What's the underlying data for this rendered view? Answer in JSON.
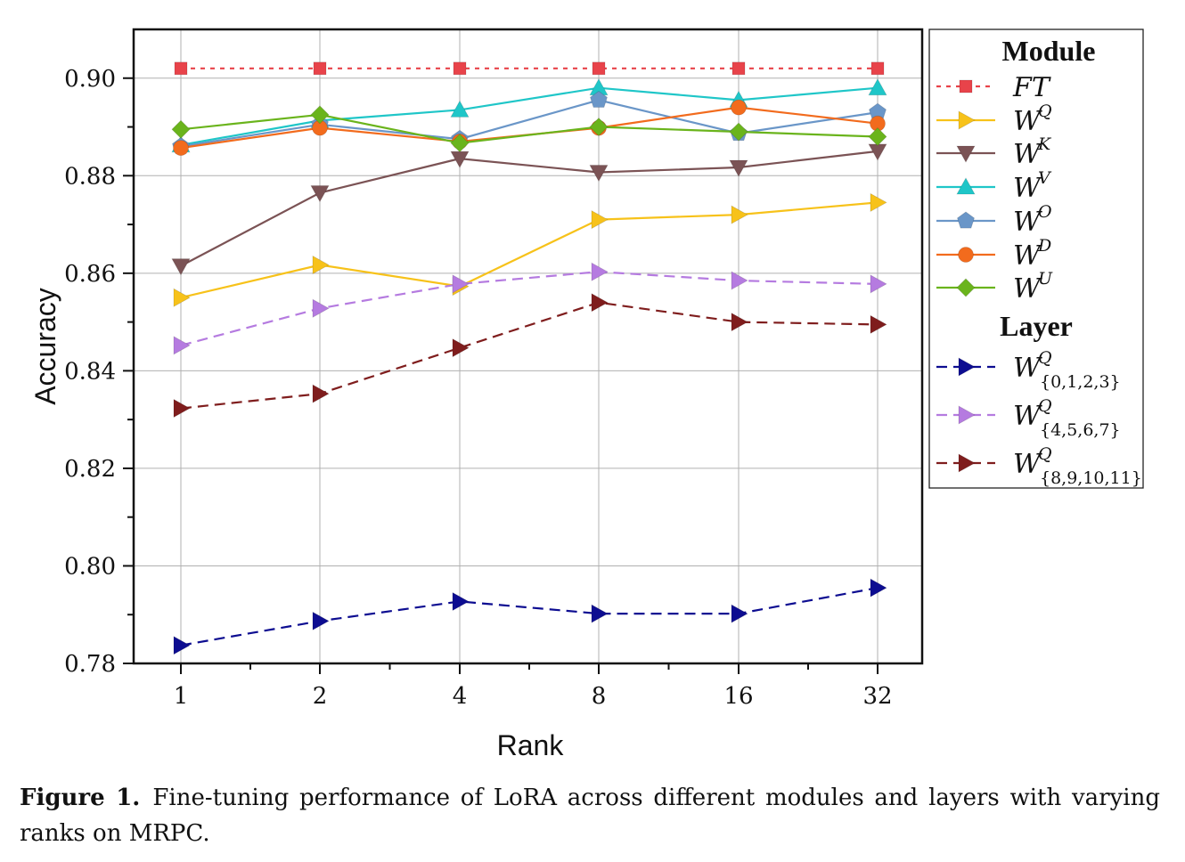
{
  "chart_data": {
    "type": "line",
    "xlabel": "Rank",
    "ylabel": "Accuracy",
    "categories": [
      "1",
      "2",
      "4",
      "8",
      "16",
      "32"
    ],
    "ylim": [
      0.78,
      0.91
    ],
    "yticks": [
      0.78,
      0.8,
      0.82,
      0.84,
      0.86,
      0.88,
      0.9
    ],
    "ytick_labels": [
      "0.78",
      "0.80",
      "0.82",
      "0.84",
      "0.86",
      "0.88",
      "0.90"
    ],
    "grid": true,
    "legend_position": "right, outside plot",
    "legend_sections": [
      "Module",
      "Layer"
    ],
    "series": [
      {
        "id": "ft",
        "name": "FT",
        "base": "FT",
        "sup": "",
        "sub": "",
        "section": "Module",
        "color": "#e8434a",
        "marker": "square",
        "dash": "dotted",
        "values": [
          0.902,
          0.902,
          0.902,
          0.902,
          0.902,
          0.902
        ]
      },
      {
        "id": "wq",
        "name": "W^Q",
        "base": "W",
        "sup": "Q",
        "sub": "",
        "section": "Module",
        "color": "#f7c21a",
        "marker": "triangle-right",
        "dash": "solid",
        "values": [
          0.855,
          0.8617,
          0.8573,
          0.871,
          0.872,
          0.8745
        ]
      },
      {
        "id": "wk",
        "name": "W^K",
        "base": "W",
        "sup": "K",
        "sub": "",
        "section": "Module",
        "color": "#7b5355",
        "marker": "triangle-down",
        "dash": "solid",
        "values": [
          0.8615,
          0.8765,
          0.8835,
          0.8807,
          0.8817,
          0.885
        ]
      },
      {
        "id": "wv",
        "name": "W^V",
        "base": "W",
        "sup": "V",
        "sub": "",
        "section": "Module",
        "color": "#1fc6c8",
        "marker": "triangle-up",
        "dash": "solid",
        "values": [
          0.8863,
          0.8913,
          0.8935,
          0.898,
          0.8955,
          0.898
        ]
      },
      {
        "id": "wo",
        "name": "W^O",
        "base": "W",
        "sup": "O",
        "sub": "",
        "section": "Module",
        "color": "#6a96c8",
        "marker": "pentagon",
        "dash": "solid",
        "values": [
          0.886,
          0.8905,
          0.8875,
          0.8955,
          0.8887,
          0.893
        ]
      },
      {
        "id": "wd",
        "name": "W^D",
        "base": "W",
        "sup": "D",
        "sub": "",
        "section": "Module",
        "color": "#f26b1d",
        "marker": "circle",
        "dash": "solid",
        "values": [
          0.8857,
          0.8898,
          0.887,
          0.8898,
          0.894,
          0.8907
        ]
      },
      {
        "id": "wu",
        "name": "W^U",
        "base": "W",
        "sup": "U",
        "sub": "",
        "section": "Module",
        "color": "#6ab41c",
        "marker": "diamond",
        "dash": "solid",
        "values": [
          0.8895,
          0.8925,
          0.8867,
          0.89,
          0.889,
          0.888
        ]
      },
      {
        "id": "l0",
        "name": "W^Q_{0,1,2,3}",
        "base": "W",
        "sup": "Q",
        "sub": "{0,1,2,3}",
        "section": "Layer",
        "color": "#0d0d91",
        "marker": "triangle-right",
        "dash": "dashed",
        "values": [
          0.7837,
          0.7887,
          0.7927,
          0.7902,
          0.7902,
          0.7955
        ]
      },
      {
        "id": "l4",
        "name": "W^Q_{4,5,6,7}",
        "base": "W",
        "sup": "Q",
        "sub": "{4,5,6,7}",
        "section": "Layer",
        "color": "#b57be0",
        "marker": "triangle-right",
        "dash": "dashed",
        "values": [
          0.8452,
          0.8528,
          0.8578,
          0.8603,
          0.8585,
          0.8578
        ]
      },
      {
        "id": "l8",
        "name": "W^Q_{8,9,10,11}",
        "base": "W",
        "sup": "Q",
        "sub": "{8,9,10,11}",
        "section": "Layer",
        "color": "#7f1d1d",
        "marker": "triangle-right",
        "dash": "dashed",
        "values": [
          0.8323,
          0.8353,
          0.8447,
          0.854,
          0.85,
          0.8495
        ]
      }
    ]
  },
  "caption": {
    "label": "Figure 1.",
    "text": "Fine-tuning performance of LoRA across different modules and layers with varying ranks on MRPC."
  }
}
